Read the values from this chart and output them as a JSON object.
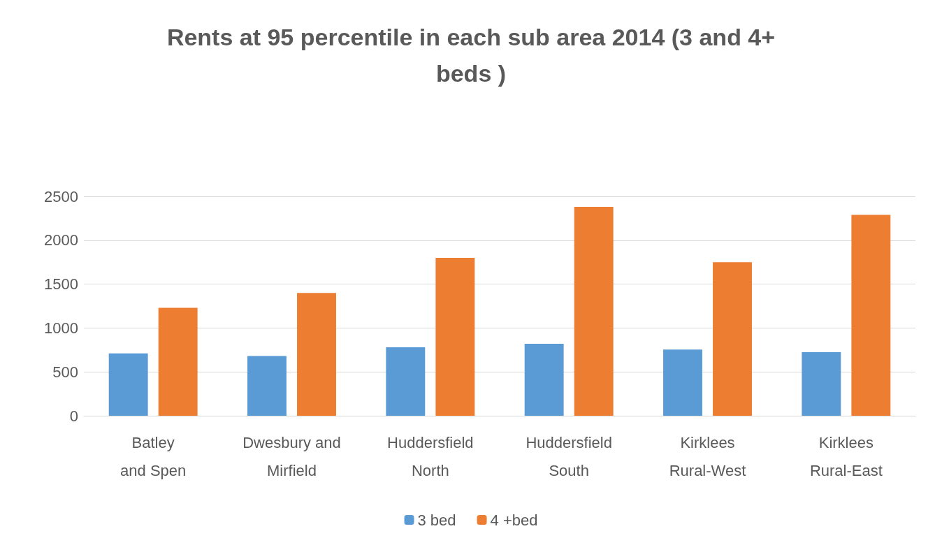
{
  "chart_data": {
    "type": "bar",
    "title": "Rents at 95 percentile in each sub area 2014 (3 and 4+ beds )",
    "categories": [
      "Batley and Spen",
      "Dwesbury and Mirfield",
      "Huddersfield North",
      "Huddersfield South",
      "Kirklees Rural-West",
      "Kirklees Rural-East"
    ],
    "series": [
      {
        "name": "3 bed",
        "color": "#5b9bd5",
        "values": [
          710,
          680,
          780,
          820,
          755,
          725
        ]
      },
      {
        "name": "4 +bed",
        "color": "#ed7d31",
        "values": [
          1230,
          1400,
          1800,
          2380,
          1750,
          2290
        ]
      }
    ],
    "ylim": [
      0,
      2500
    ],
    "yticks": [
      0,
      500,
      1000,
      1500,
      2000,
      2500
    ],
    "grid": "y",
    "legend": "bottom"
  }
}
